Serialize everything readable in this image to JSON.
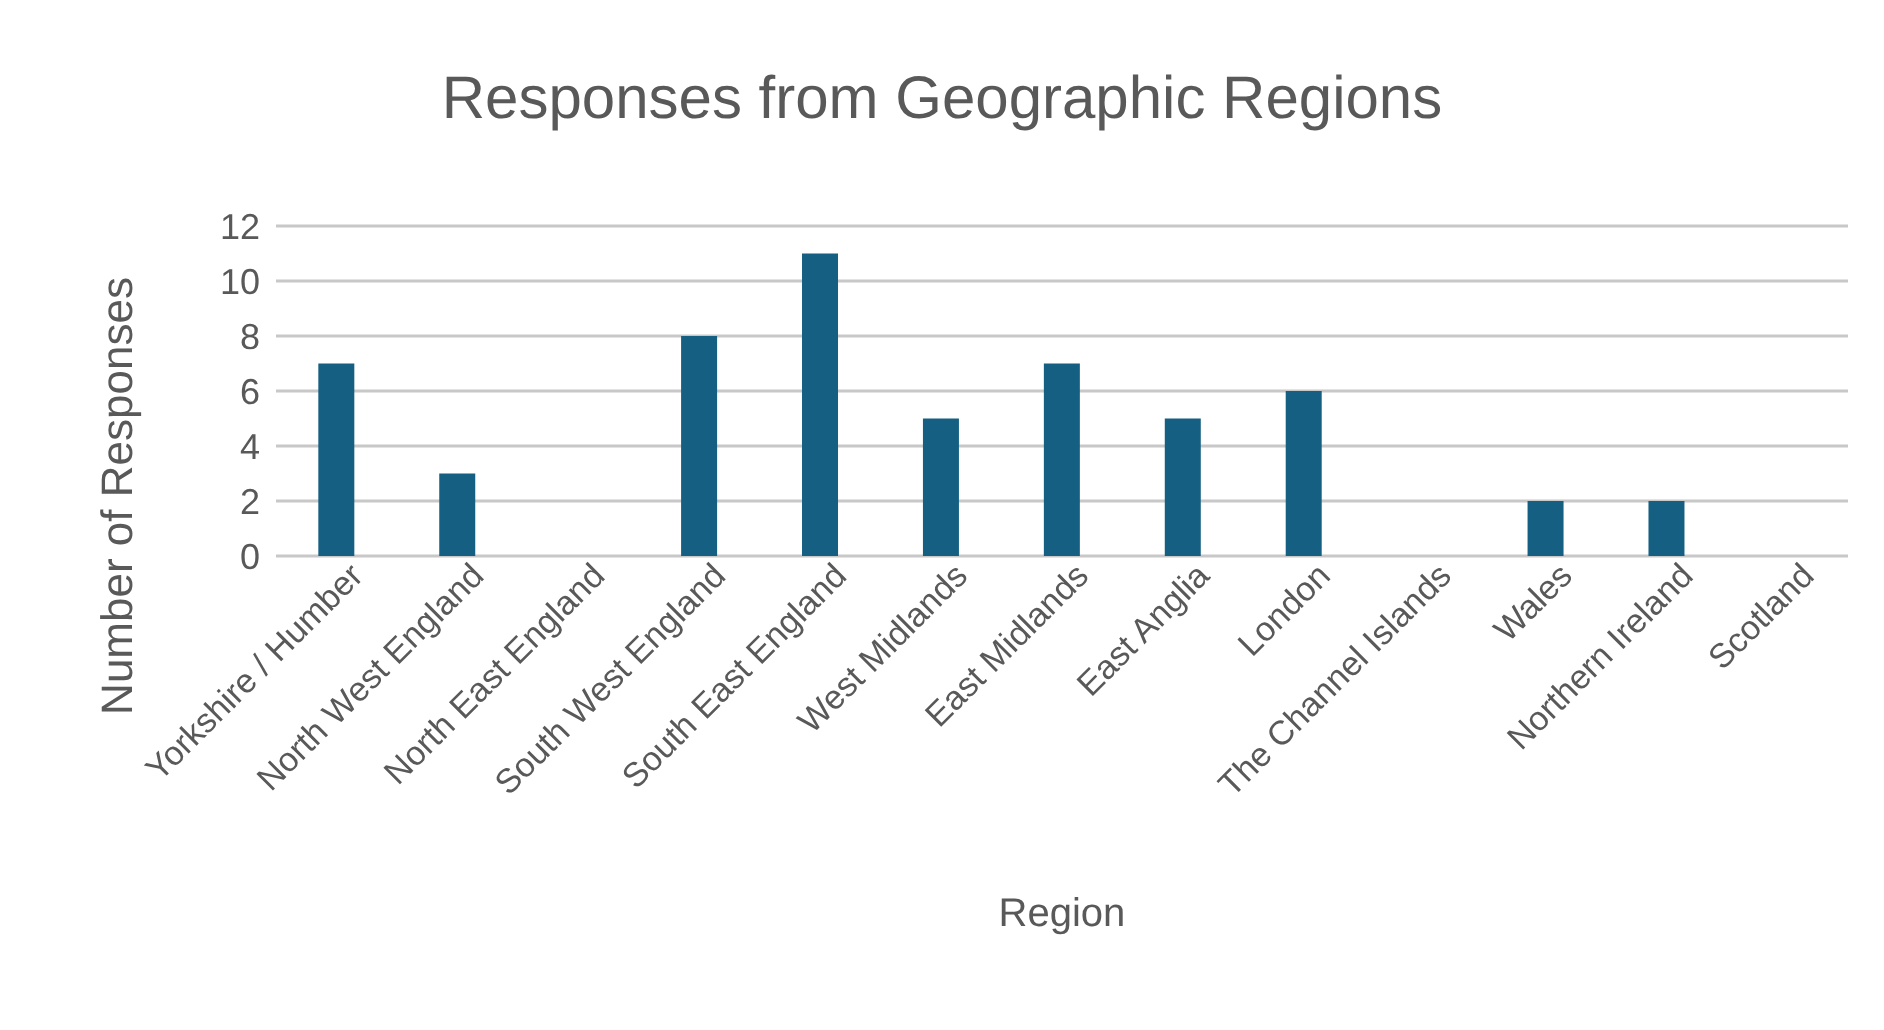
{
  "chart_data": {
    "type": "bar",
    "title": "Responses from Geographic Regions",
    "xlabel": "Region",
    "ylabel": "Number of Responses",
    "categories": [
      "Yorkshire / Humber",
      "North West England",
      "North East England",
      "South West England",
      "South East England",
      "West Midlands",
      "East Midlands",
      "East Anglia",
      "London",
      "The Channel Islands",
      "Wales",
      "Northern Ireland",
      "Scotland"
    ],
    "values": [
      7,
      3,
      0,
      8,
      11,
      5,
      7,
      5,
      6,
      0,
      2,
      2,
      0
    ],
    "color": "#155f82",
    "ylim": [
      0,
      12
    ],
    "yticks": [
      0,
      2,
      4,
      6,
      8,
      10,
      12
    ],
    "grid": "y",
    "legend": false
  }
}
